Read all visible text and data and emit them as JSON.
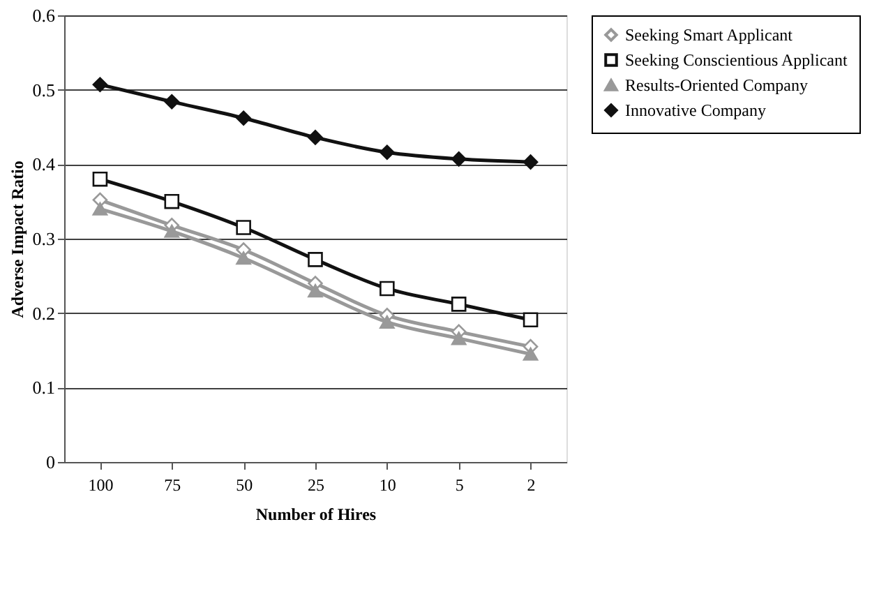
{
  "chart_data": {
    "type": "line",
    "xlabel": "Number of Hires",
    "ylabel": "Adverse Impact Ratio",
    "categories": [
      "100",
      "75",
      "50",
      "25",
      "10",
      "5",
      "2"
    ],
    "series": [
      {
        "name": "Seeking Smart Applicant",
        "color": "#999999",
        "marker": "diamond",
        "values": [
          0.352,
          0.318,
          0.285,
          0.24,
          0.197,
          0.175,
          0.155
        ]
      },
      {
        "name": "Seeking Conscientious Applicant",
        "color": "#111111",
        "marker": "square",
        "values": [
          0.38,
          0.35,
          0.315,
          0.272,
          0.233,
          0.212,
          0.191
        ]
      },
      {
        "name": "Results-Oriented Company",
        "color": "#999999",
        "marker": "triangle",
        "values": [
          0.34,
          0.31,
          0.274,
          0.23,
          0.188,
          0.166,
          0.145
        ]
      },
      {
        "name": "Innovative Company",
        "color": "#111111",
        "marker": "diamond",
        "values": [
          0.507,
          0.484,
          0.462,
          0.436,
          0.416,
          0.407,
          0.403
        ]
      }
    ],
    "ylim": [
      0,
      0.6
    ],
    "yticks": [
      {
        "value": 0,
        "label": "0"
      },
      0.1,
      0.2,
      0.3,
      0.4,
      0.5,
      0.6
    ],
    "grid": "y",
    "legend": "right",
    "line_style": "solid"
  }
}
